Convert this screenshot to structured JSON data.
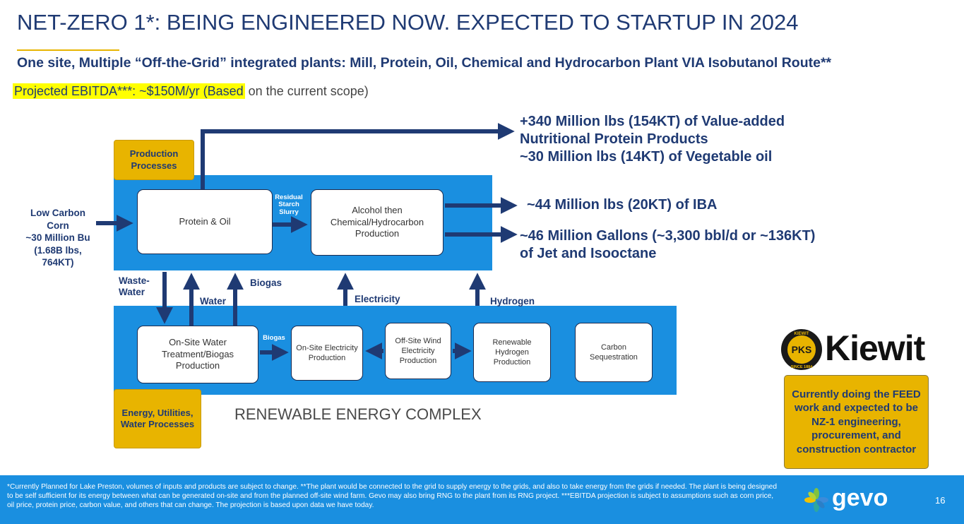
{
  "header": {
    "title": "NET-ZERO 1*: BEING ENGINEERED NOW.  EXPECTED TO STARTUP IN 2024",
    "subtitle": "One site, Multiple “Off-the-Grid” integrated plants: Mill, Protein, Oil, Chemical and Hydrocarbon Plant VIA Isobutanol Route**",
    "ebitda_highlight": "Projected EBITDA***:  ~$150M/yr (Based",
    "ebitda_rest": " on the current scope)"
  },
  "diagram": {
    "labels": {
      "production_processes": "Production Processes",
      "energy_processes": "Energy, Utilities, Water Processes",
      "complex_title": "RENEWABLE ENERGY COMPLEX"
    },
    "input": {
      "line1": "Low Carbon",
      "line2": "Corn",
      "line3": "~30 Million Bu",
      "line4": "(1.68B lbs,",
      "line5": "764KT)"
    },
    "boxes": {
      "protein_oil": "Protein & Oil",
      "alcohol": "Alcohol then Chemical/Hydrocarbon Production",
      "water_treatment": "On-Site Water Treatment/Biogas Production",
      "electricity": "On-Site Electricity Production",
      "wind": "Off-Site Wind Electricity Production",
      "hydrogen": "Renewable Hydrogen Production",
      "carbon": "Carbon Sequestration"
    },
    "flows": {
      "residual": "Residual Starch Slurry",
      "wastewater": "Waste-Water",
      "water": "Water",
      "biogas_up": "Biogas",
      "biogas_side": "Biogas",
      "electricity": "Electricity",
      "hydrogen": "Hydrogen"
    },
    "outputs": {
      "protein_line1": "+340 Million lbs (154KT) of Value-added",
      "protein_line2": "Nutritional Protein Products",
      "protein_line3": "~30 Million lbs (14KT) of Vegetable oil",
      "iba": "~44 Million lbs (20KT) of IBA",
      "jet_line1": "~46 Million Gallons (~3,300 bbl/d or ~136KT)",
      "jet_line2": "of Jet and Isooctane"
    }
  },
  "partner": {
    "logo_text": "Kiewit",
    "seal_text": "PKS",
    "seal_ring_top": "KIEWIT",
    "seal_ring_bottom": "SINCE 1884",
    "note": "Currently doing the FEED work and expected to be NZ-1 engineering, procurement, and construction contractor"
  },
  "footer": {
    "footnote": "*Currently Planned for Lake Preston, volumes of inputs and products are subject to change. **The plant would be connected to the grid to supply energy to the grids, and also to take energy from the grids if needed. The plant is being designed to be self sufficient for its energy between what can be generated on-site and from the planned off-site wind farm. Gevo may also bring RNG to the plant from its RNG project. ***EBITDA  projection is subject to assumptions such as corn price, oil price, protein price, carbon value, and others that can change.  The projection is based upon data we have today.",
    "brand": "gevo",
    "page_number": "16"
  },
  "colors": {
    "navy": "#1f3a73",
    "blue_panel": "#1a8fe0",
    "yellow": "#e8b400",
    "highlight": "#ffff00"
  }
}
